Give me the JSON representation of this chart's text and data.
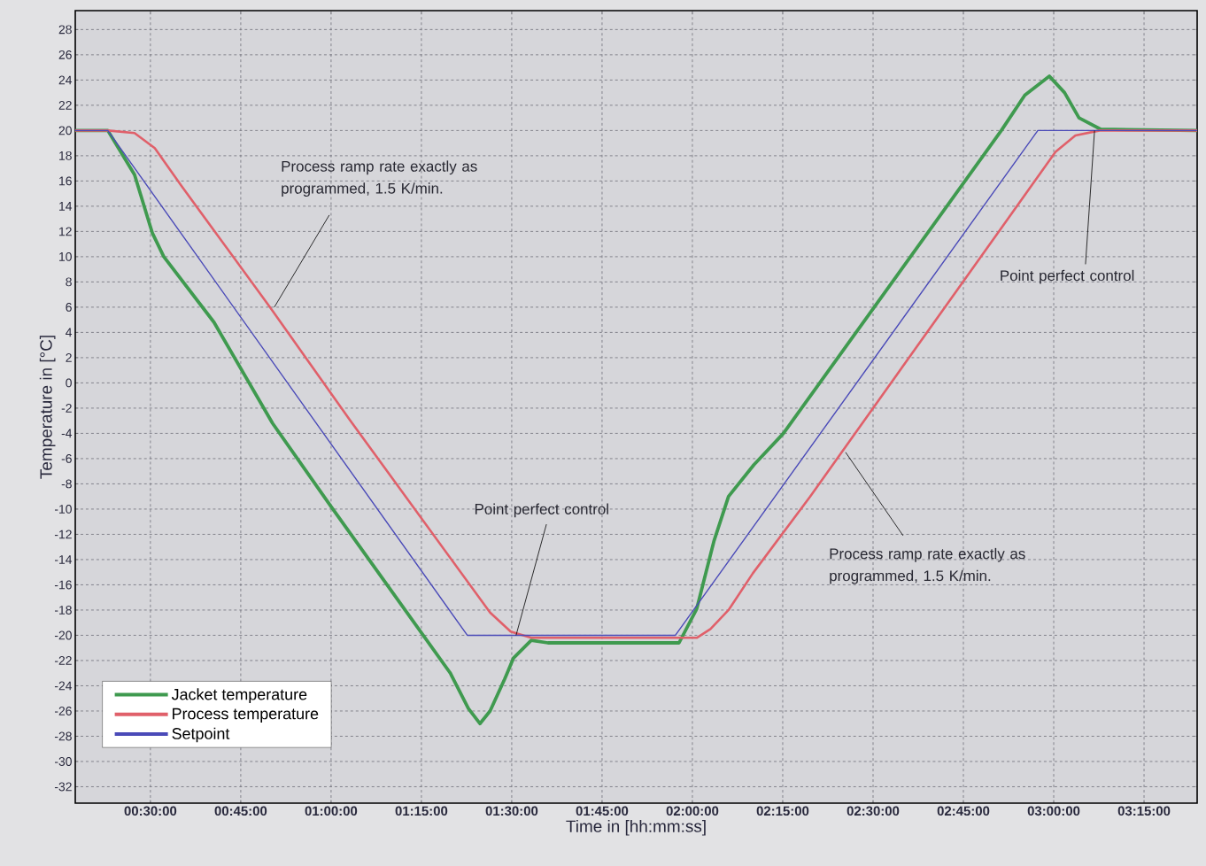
{
  "chart_data": {
    "type": "line",
    "xlabel": "Time in [hh:mm:ss]",
    "ylabel": "Temperature in [°C]",
    "xlim": [
      0.292,
      3.397
    ],
    "ylim": [
      -33.3,
      29.5
    ],
    "xticks": [
      {
        "value": 0.5,
        "label": "00:30:00"
      },
      {
        "value": 0.75,
        "label": "00:45:00"
      },
      {
        "value": 1.0,
        "label": "01:00:00"
      },
      {
        "value": 1.25,
        "label": "01:15:00"
      },
      {
        "value": 1.5,
        "label": "01:30:00"
      },
      {
        "value": 1.75,
        "label": "01:45:00"
      },
      {
        "value": 2.0,
        "label": "02:00:00"
      },
      {
        "value": 2.25,
        "label": "02:15:00"
      },
      {
        "value": 2.5,
        "label": "02:30:00"
      },
      {
        "value": 2.75,
        "label": "02:45:00"
      },
      {
        "value": 3.0,
        "label": "03:00:00"
      },
      {
        "value": 3.25,
        "label": "03:15:00"
      }
    ],
    "yticks": [
      -32,
      -30,
      -28,
      -26,
      -24,
      -22,
      -20,
      -18,
      -16,
      -14,
      -12,
      -10,
      -8,
      -6,
      -4,
      -2,
      0,
      2,
      4,
      6,
      8,
      10,
      12,
      14,
      16,
      18,
      20,
      22,
      24,
      26,
      28
    ],
    "grid": true,
    "legend": "bottom left",
    "series": [
      {
        "name": "Jacket temperature",
        "color": "#3f9a4f",
        "x": [
          0.292,
          0.382,
          0.456,
          0.505,
          0.537,
          0.676,
          0.838,
          1.0,
          1.2,
          1.33,
          1.38,
          1.412,
          1.44,
          1.48,
          1.505,
          1.554,
          1.6,
          1.963,
          2.012,
          2.06,
          2.1,
          2.17,
          2.252,
          2.855,
          2.92,
          2.988,
          3.03,
          3.07,
          3.13,
          3.397
        ],
        "values": [
          20,
          20,
          16.5,
          11.9,
          10,
          4.8,
          -3.2,
          -9.8,
          -17.8,
          -23,
          -25.8,
          -27,
          -26,
          -23.5,
          -21.8,
          -20.4,
          -20.6,
          -20.6,
          -17.9,
          -12.5,
          -9,
          -6.5,
          -4,
          20,
          22.8,
          24.3,
          23,
          21,
          20.1,
          20
        ]
      },
      {
        "name": "Process temperature",
        "color": "#e0606a",
        "x": [
          0.292,
          0.382,
          0.456,
          0.512,
          0.586,
          0.831,
          1.051,
          1.44,
          1.497,
          1.554,
          2.012,
          2.05,
          2.1,
          2.167,
          2.326,
          3.005,
          3.06,
          3.127,
          3.397
        ],
        "values": [
          20,
          20,
          19.8,
          18.6,
          15.6,
          6,
          -2.9,
          -18.2,
          -19.7,
          -20.2,
          -20.2,
          -19.5,
          -18,
          -15.1,
          -9,
          18.3,
          19.6,
          20,
          20
        ]
      },
      {
        "name": "Setpoint",
        "color": "#4a4ab8",
        "x": [
          0.292,
          0.382,
          1.377,
          1.953,
          2.956,
          3.397
        ],
        "values": [
          20,
          20,
          -20,
          -20,
          20,
          20
        ]
      }
    ],
    "annotations": [
      {
        "text": "Process ramp rate exactly as programmed, 1.5 K/min.",
        "x": 0.843,
        "y": 6
      },
      {
        "text": "Point perfect control",
        "x": 1.512,
        "y": -20
      },
      {
        "text": "Process ramp rate exactly as programmed, 1.5 K/min.",
        "x": 2.424,
        "y": -5.5
      },
      {
        "text": "Point perfect control",
        "x": 3.113,
        "y": 20
      }
    ]
  }
}
